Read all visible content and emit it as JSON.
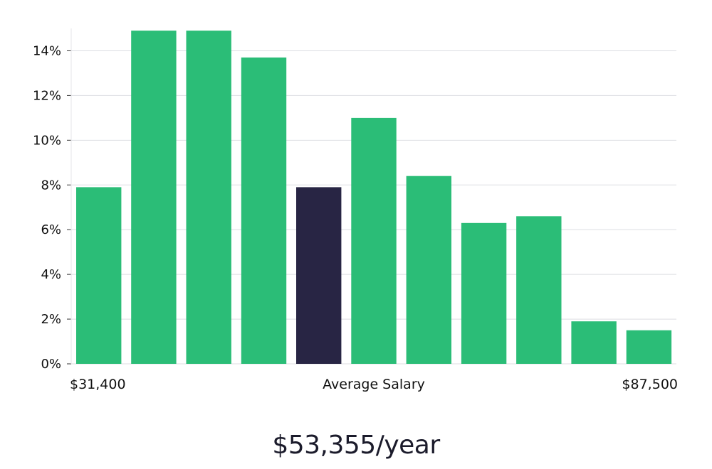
{
  "chart_data": {
    "type": "bar",
    "title": "",
    "xlabel": "Average Salary",
    "ylabel": "",
    "ylim": [
      0,
      15
    ],
    "yticks": [
      0,
      2,
      4,
      6,
      8,
      10,
      12,
      14
    ],
    "ytick_labels": [
      "0%",
      "2%",
      "4%",
      "6%",
      "8%",
      "10%",
      "12%",
      "14%"
    ],
    "x_min_label": "$31,400",
    "x_max_label": "$87,500",
    "values": [
      7.9,
      14.9,
      14.9,
      13.7,
      7.9,
      11.0,
      8.4,
      6.3,
      6.6,
      1.9,
      1.5
    ],
    "highlight_index": 4,
    "grid": true,
    "colors": {
      "bar": "#2bbd77",
      "highlight": "#282544",
      "grid": "#dcdde2",
      "axis": "#e5e5e8"
    }
  },
  "summary": {
    "salary_text": "$53,355/year"
  }
}
